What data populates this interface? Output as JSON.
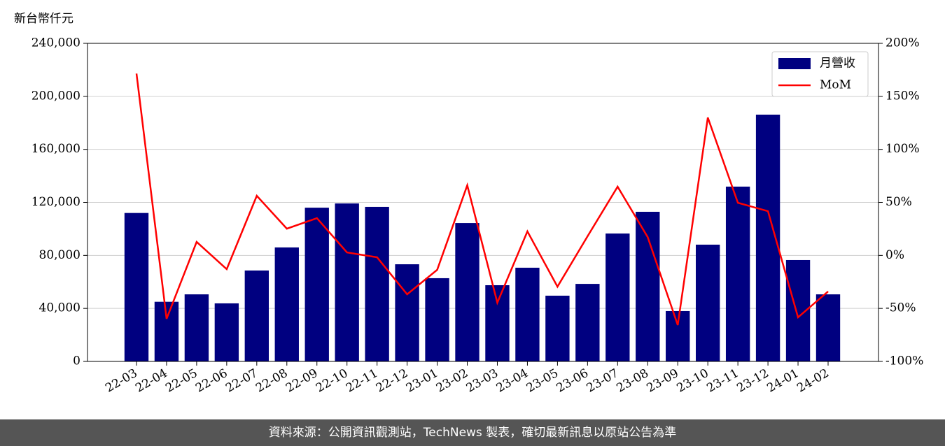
{
  "chart_data": {
    "type": "bar_line",
    "ylabel": "新台幣仟元",
    "categories": [
      "22-03",
      "22-04",
      "22-05",
      "22-06",
      "22-07",
      "22-08",
      "22-09",
      "22-10",
      "22-11",
      "22-12",
      "23-01",
      "23-02",
      "23-03",
      "23-04",
      "23-05",
      "23-06",
      "23-07",
      "23-08",
      "23-09",
      "23-10",
      "23-11",
      "23-12",
      "24-01",
      "24-02"
    ],
    "series": [
      {
        "name": "月營收",
        "type": "bar",
        "color": "#000080",
        "values": [
          112000,
          45000,
          50600,
          43800,
          68600,
          86000,
          116000,
          119200,
          116600,
          73300,
          62800,
          104400,
          57500,
          70700,
          49600,
          58500,
          96500,
          112900,
          38000,
          88100,
          131900,
          186200,
          76500,
          50600
        ]
      },
      {
        "name": "MoM",
        "type": "line",
        "axis": "y2",
        "color": "#ff0000",
        "values": [
          171.5,
          -59.8,
          12.7,
          -13,
          56.2,
          25.2,
          35.1,
          2.8,
          -1.8,
          -36.7,
          -13.6,
          66.1,
          -44.6,
          22.6,
          -29.5,
          18,
          64.8,
          17.3,
          -65.7,
          130,
          49.6,
          41.7,
          -58.4,
          -34
        ]
      }
    ],
    "ylim": [
      0,
      240000
    ],
    "yticks": [
      {
        "value": 0,
        "label": "0"
      },
      {
        "value": 40000,
        "label": "40,000"
      },
      {
        "value": 80000,
        "label": "80,000"
      },
      {
        "value": 120000,
        "label": "120,000"
      },
      {
        "value": 160000,
        "label": "160,000"
      },
      {
        "value": 200000,
        "label": "200,000"
      },
      {
        "value": 240000,
        "label": "240,000"
      }
    ],
    "y2lim": [
      -100,
      200
    ],
    "y2ticks": [
      {
        "value": -100,
        "label": "-100%"
      },
      {
        "value": -50,
        "label": "-50%"
      },
      {
        "value": 0,
        "label": "0%"
      },
      {
        "value": 50,
        "label": "50%"
      },
      {
        "value": 100,
        "label": "100%"
      },
      {
        "value": 150,
        "label": "150%"
      },
      {
        "value": 200,
        "label": "200%"
      }
    ],
    "grid": true,
    "legend": "upper right"
  },
  "footer": "資料來源：公開資訊觀測站，TechNews 製表，確切最新訊息以原站公告為準"
}
